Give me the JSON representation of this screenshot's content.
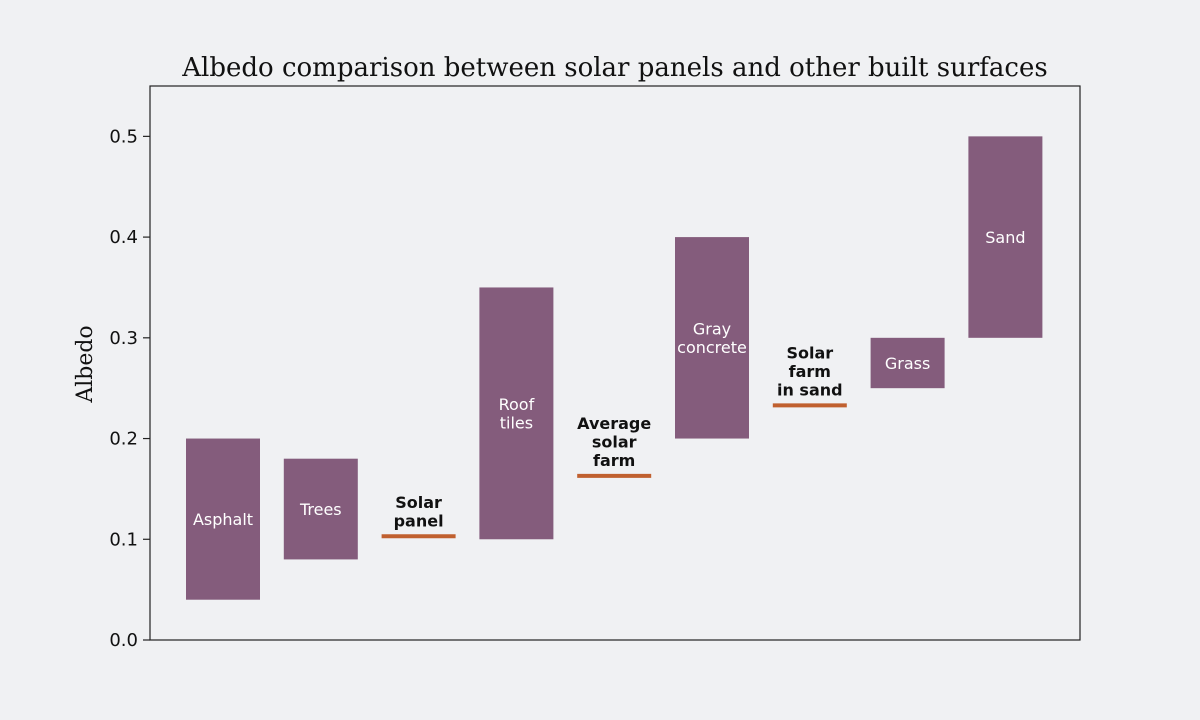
{
  "chart_data": {
    "type": "bar",
    "title": "Albedo comparison between solar panels and other built surfaces",
    "xlabel": "",
    "ylabel": "Albedo",
    "ylim": [
      0,
      0.55
    ],
    "yticks": [
      0.0,
      0.1,
      0.2,
      0.3,
      0.4,
      0.5
    ],
    "ytick_labels": [
      "0.0",
      "0.1",
      "0.2",
      "0.3",
      "0.4",
      "0.5"
    ],
    "grid": false,
    "colors": {
      "range_bar": "#845c7c",
      "point_marker": "#c0602f",
      "range_text": "#ffffff",
      "point_text": "#111111"
    },
    "categories": [
      "Asphalt",
      "Trees",
      "Solar panel",
      "Roof tiles",
      "Average solar farm",
      "Gray concrete",
      "Solar farm in sand",
      "Grass",
      "Sand"
    ],
    "items": [
      {
        "kind": "range",
        "label_lines": [
          "Asphalt"
        ],
        "low": 0.04,
        "high": 0.2
      },
      {
        "kind": "range",
        "label_lines": [
          "Trees"
        ],
        "low": 0.08,
        "high": 0.18
      },
      {
        "kind": "point",
        "label_lines": [
          "Solar",
          "panel"
        ],
        "value": 0.1
      },
      {
        "kind": "range",
        "label_lines": [
          "Roof",
          "tiles"
        ],
        "low": 0.1,
        "high": 0.35
      },
      {
        "kind": "point",
        "label_lines": [
          "Average",
          "solar",
          "farm"
        ],
        "value": 0.16
      },
      {
        "kind": "range",
        "label_lines": [
          "Gray",
          "concrete"
        ],
        "low": 0.2,
        "high": 0.4
      },
      {
        "kind": "point",
        "label_lines": [
          "Solar",
          "farm",
          "in sand"
        ],
        "value": 0.23
      },
      {
        "kind": "range",
        "label_lines": [
          "Grass"
        ],
        "low": 0.25,
        "high": 0.3
      },
      {
        "kind": "range",
        "label_lines": [
          "Sand"
        ],
        "low": 0.3,
        "high": 0.5
      }
    ]
  }
}
